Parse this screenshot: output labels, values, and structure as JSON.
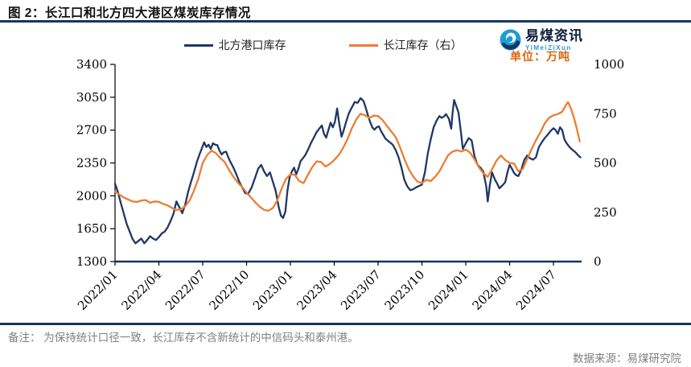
{
  "title": "图 2：长江口和北方四大港区煤炭库存情况",
  "logo": {
    "name": "易煤资讯",
    "sub": "YiMeiZiXun"
  },
  "unit_label": "单位：万吨",
  "note": "备注：  为保持统计口径一致，长江库存不含新统计的中信码头和泰州港。",
  "source": "数据来源：易煤研究院",
  "colors": {
    "north_line": "#1F3864",
    "yangtze_line": "#ED7D31",
    "rule_navy": "#17365D",
    "brand_blue": "#1E9CD7",
    "unit_orange": "#E2640D",
    "note_gray": "#7F7F7F"
  },
  "chart_data": {
    "type": "line",
    "title": "",
    "xlabel": "",
    "ylabel_left": "",
    "ylabel_right": "",
    "grid": false,
    "legend_position": "top-center",
    "x_unit": "months since 2022/01",
    "x_range": [
      0,
      32.2
    ],
    "x_ticks": [
      0,
      3,
      6,
      9,
      12,
      15,
      18,
      21,
      24,
      27,
      30
    ],
    "x_tick_labels": [
      "2022/01",
      "2022/04",
      "2022/07",
      "2022/10",
      "2023/01",
      "2023/04",
      "2023/07",
      "2023/10",
      "2024/01",
      "2024/04",
      "2024/07"
    ],
    "left_axis": {
      "range": [
        1300,
        3400
      ],
      "ticks": [
        1300,
        1650,
        2000,
        2350,
        2700,
        3050,
        3400
      ]
    },
    "right_axis": {
      "range": [
        0,
        1000
      ],
      "ticks": [
        0,
        250,
        500,
        750,
        1000
      ]
    },
    "series": [
      {
        "name": "北方港口库存",
        "axis": "left",
        "color": "#1F3864",
        "points": [
          [
            0,
            2130
          ],
          [
            0.2,
            2040
          ],
          [
            0.4,
            1920
          ],
          [
            0.6,
            1810
          ],
          [
            0.8,
            1700
          ],
          [
            1,
            1620
          ],
          [
            1.2,
            1540
          ],
          [
            1.4,
            1495
          ],
          [
            1.6,
            1520
          ],
          [
            1.8,
            1545
          ],
          [
            2,
            1495
          ],
          [
            2.2,
            1530
          ],
          [
            2.4,
            1570
          ],
          [
            2.6,
            1545
          ],
          [
            2.8,
            1530
          ],
          [
            3,
            1560
          ],
          [
            3.2,
            1600
          ],
          [
            3.4,
            1620
          ],
          [
            3.6,
            1665
          ],
          [
            3.8,
            1730
          ],
          [
            4,
            1810
          ],
          [
            4.2,
            1940
          ],
          [
            4.4,
            1880
          ],
          [
            4.6,
            1815
          ],
          [
            4.8,
            1905
          ],
          [
            5,
            2040
          ],
          [
            5.2,
            2150
          ],
          [
            5.4,
            2250
          ],
          [
            5.6,
            2360
          ],
          [
            5.8,
            2450
          ],
          [
            6,
            2530
          ],
          [
            6.1,
            2570
          ],
          [
            6.25,
            2520
          ],
          [
            6.4,
            2545
          ],
          [
            6.55,
            2500
          ],
          [
            6.7,
            2560
          ],
          [
            6.85,
            2545
          ],
          [
            7,
            2540
          ],
          [
            7.15,
            2480
          ],
          [
            7.3,
            2440
          ],
          [
            7.45,
            2465
          ],
          [
            7.6,
            2470
          ],
          [
            7.75,
            2410
          ],
          [
            7.9,
            2360
          ],
          [
            8.1,
            2300
          ],
          [
            8.3,
            2230
          ],
          [
            8.5,
            2150
          ],
          [
            8.7,
            2090
          ],
          [
            8.9,
            2030
          ],
          [
            9.1,
            2020
          ],
          [
            9.35,
            2090
          ],
          [
            9.6,
            2200
          ],
          [
            9.8,
            2290
          ],
          [
            10,
            2330
          ],
          [
            10.2,
            2260
          ],
          [
            10.4,
            2210
          ],
          [
            10.6,
            2250
          ],
          [
            10.8,
            2150
          ],
          [
            11,
            2050
          ],
          [
            11.2,
            1880
          ],
          [
            11.35,
            1790
          ],
          [
            11.5,
            1765
          ],
          [
            11.65,
            1830
          ],
          [
            11.8,
            2060
          ],
          [
            11.95,
            2200
          ],
          [
            12.1,
            2260
          ],
          [
            12.25,
            2300
          ],
          [
            12.4,
            2230
          ],
          [
            12.55,
            2290
          ],
          [
            12.7,
            2370
          ],
          [
            12.85,
            2400
          ],
          [
            13,
            2430
          ],
          [
            13.2,
            2490
          ],
          [
            13.4,
            2560
          ],
          [
            13.6,
            2620
          ],
          [
            13.8,
            2680
          ],
          [
            14,
            2720
          ],
          [
            14.15,
            2750
          ],
          [
            14.3,
            2660
          ],
          [
            14.45,
            2620
          ],
          [
            14.6,
            2700
          ],
          [
            14.75,
            2780
          ],
          [
            14.9,
            2730
          ],
          [
            15.05,
            2790
          ],
          [
            15.2,
            2930
          ],
          [
            15.35,
            2760
          ],
          [
            15.5,
            2630
          ],
          [
            15.65,
            2700
          ],
          [
            15.8,
            2780
          ],
          [
            16,
            2880
          ],
          [
            16.2,
            2940
          ],
          [
            16.4,
            3000
          ],
          [
            16.6,
            2990
          ],
          [
            16.8,
            3040
          ],
          [
            17,
            3010
          ],
          [
            17.15,
            2940
          ],
          [
            17.3,
            2860
          ],
          [
            17.45,
            2790
          ],
          [
            17.6,
            2730
          ],
          [
            17.75,
            2705
          ],
          [
            17.9,
            2730
          ],
          [
            18.05,
            2740
          ],
          [
            18.2,
            2690
          ],
          [
            18.35,
            2650
          ],
          [
            18.5,
            2610
          ],
          [
            18.65,
            2590
          ],
          [
            18.8,
            2570
          ],
          [
            19,
            2545
          ],
          [
            19.2,
            2490
          ],
          [
            19.4,
            2410
          ],
          [
            19.6,
            2300
          ],
          [
            19.8,
            2170
          ],
          [
            20,
            2100
          ],
          [
            20.2,
            2060
          ],
          [
            20.4,
            2070
          ],
          [
            20.6,
            2090
          ],
          [
            20.8,
            2105
          ],
          [
            21,
            2120
          ],
          [
            21.2,
            2250
          ],
          [
            21.4,
            2450
          ],
          [
            21.6,
            2600
          ],
          [
            21.8,
            2730
          ],
          [
            22,
            2800
          ],
          [
            22.2,
            2850
          ],
          [
            22.35,
            2830
          ],
          [
            22.5,
            2845
          ],
          [
            22.65,
            2870
          ],
          [
            22.85,
            2820
          ],
          [
            23,
            2715
          ],
          [
            23.1,
            2890
          ],
          [
            23.2,
            3020
          ],
          [
            23.35,
            2955
          ],
          [
            23.5,
            2890
          ],
          [
            23.65,
            2700
          ],
          [
            23.8,
            2500
          ],
          [
            24,
            2560
          ],
          [
            24.2,
            2615
          ],
          [
            24.4,
            2590
          ],
          [
            24.6,
            2420
          ],
          [
            24.8,
            2330
          ],
          [
            25,
            2300
          ],
          [
            25.2,
            2260
          ],
          [
            25.4,
            2100
          ],
          [
            25.5,
            1940
          ],
          [
            25.65,
            2120
          ],
          [
            25.8,
            2250
          ],
          [
            26,
            2170
          ],
          [
            26.15,
            2130
          ],
          [
            26.3,
            2080
          ],
          [
            26.5,
            2110
          ],
          [
            26.7,
            2145
          ],
          [
            26.85,
            2250
          ],
          [
            27,
            2330
          ],
          [
            27.15,
            2290
          ],
          [
            27.3,
            2245
          ],
          [
            27.45,
            2220
          ],
          [
            27.6,
            2210
          ],
          [
            27.8,
            2280
          ],
          [
            28,
            2380
          ],
          [
            28.2,
            2430
          ],
          [
            28.4,
            2400
          ],
          [
            28.6,
            2385
          ],
          [
            28.8,
            2410
          ],
          [
            29,
            2520
          ],
          [
            29.2,
            2570
          ],
          [
            29.4,
            2615
          ],
          [
            29.6,
            2650
          ],
          [
            29.8,
            2690
          ],
          [
            30,
            2720
          ],
          [
            30.15,
            2700
          ],
          [
            30.3,
            2660
          ],
          [
            30.45,
            2730
          ],
          [
            30.6,
            2700
          ],
          [
            30.75,
            2600
          ],
          [
            30.9,
            2560
          ],
          [
            31.1,
            2520
          ],
          [
            31.3,
            2490
          ],
          [
            31.5,
            2465
          ],
          [
            31.7,
            2430
          ],
          [
            31.85,
            2410
          ]
        ]
      },
      {
        "name": "长江库存（右）",
        "axis": "right",
        "color": "#ED7D31",
        "points": [
          [
            0,
            355
          ],
          [
            0.3,
            340
          ],
          [
            0.6,
            325
          ],
          [
            0.9,
            315
          ],
          [
            1.2,
            305
          ],
          [
            1.5,
            302
          ],
          [
            1.8,
            310
          ],
          [
            2.1,
            312
          ],
          [
            2.4,
            298
          ],
          [
            2.7,
            305
          ],
          [
            3,
            303
          ],
          [
            3.3,
            292
          ],
          [
            3.6,
            285
          ],
          [
            3.9,
            272
          ],
          [
            4.2,
            262
          ],
          [
            4.5,
            265
          ],
          [
            4.8,
            280
          ],
          [
            5.1,
            310
          ],
          [
            5.4,
            360
          ],
          [
            5.7,
            420
          ],
          [
            6,
            500
          ],
          [
            6.3,
            540
          ],
          [
            6.6,
            562
          ],
          [
            6.9,
            550
          ],
          [
            7.2,
            525
          ],
          [
            7.5,
            505
          ],
          [
            7.8,
            465
          ],
          [
            8.1,
            430
          ],
          [
            8.4,
            400
          ],
          [
            8.7,
            378
          ],
          [
            9,
            350
          ],
          [
            9.3,
            325
          ],
          [
            9.6,
            300
          ],
          [
            9.9,
            278
          ],
          [
            10.2,
            262
          ],
          [
            10.5,
            258
          ],
          [
            10.8,
            272
          ],
          [
            11.1,
            310
          ],
          [
            11.4,
            370
          ],
          [
            11.7,
            420
          ],
          [
            12,
            442
          ],
          [
            12.3,
            440
          ],
          [
            12.6,
            408
          ],
          [
            12.9,
            398
          ],
          [
            13.2,
            440
          ],
          [
            13.5,
            480
          ],
          [
            13.8,
            508
          ],
          [
            14.1,
            505
          ],
          [
            14.4,
            482
          ],
          [
            14.7,
            495
          ],
          [
            15,
            515
          ],
          [
            15.3,
            540
          ],
          [
            15.6,
            575
          ],
          [
            15.9,
            620
          ],
          [
            16.2,
            675
          ],
          [
            16.5,
            720
          ],
          [
            16.8,
            750
          ],
          [
            17.1,
            742
          ],
          [
            17.4,
            728
          ],
          [
            17.7,
            740
          ],
          [
            18,
            738
          ],
          [
            18.3,
            718
          ],
          [
            18.6,
            688
          ],
          [
            18.9,
            660
          ],
          [
            19.2,
            632
          ],
          [
            19.5,
            580
          ],
          [
            19.8,
            520
          ],
          [
            20.1,
            468
          ],
          [
            20.4,
            432
          ],
          [
            20.7,
            405
          ],
          [
            21,
            398
          ],
          [
            21.3,
            415
          ],
          [
            21.6,
            408
          ],
          [
            21.9,
            430
          ],
          [
            22.2,
            458
          ],
          [
            22.5,
            500
          ],
          [
            22.8,
            540
          ],
          [
            23.1,
            558
          ],
          [
            23.4,
            565
          ],
          [
            23.7,
            558
          ],
          [
            24,
            568
          ],
          [
            24.3,
            552
          ],
          [
            24.6,
            518
          ],
          [
            24.9,
            478
          ],
          [
            25.2,
            448
          ],
          [
            25.5,
            430
          ],
          [
            25.8,
            468
          ],
          [
            26.1,
            512
          ],
          [
            26.4,
            538
          ],
          [
            26.7,
            515
          ],
          [
            27,
            500
          ],
          [
            27.3,
            497
          ],
          [
            27.6,
            458
          ],
          [
            27.9,
            470
          ],
          [
            28.2,
            520
          ],
          [
            28.5,
            570
          ],
          [
            28.8,
            615
          ],
          [
            29.1,
            655
          ],
          [
            29.4,
            700
          ],
          [
            29.7,
            730
          ],
          [
            30,
            742
          ],
          [
            30.3,
            748
          ],
          [
            30.6,
            760
          ],
          [
            30.9,
            800
          ],
          [
            31,
            808
          ],
          [
            31.2,
            775
          ],
          [
            31.4,
            730
          ],
          [
            31.6,
            672
          ],
          [
            31.8,
            610
          ]
        ]
      }
    ]
  }
}
